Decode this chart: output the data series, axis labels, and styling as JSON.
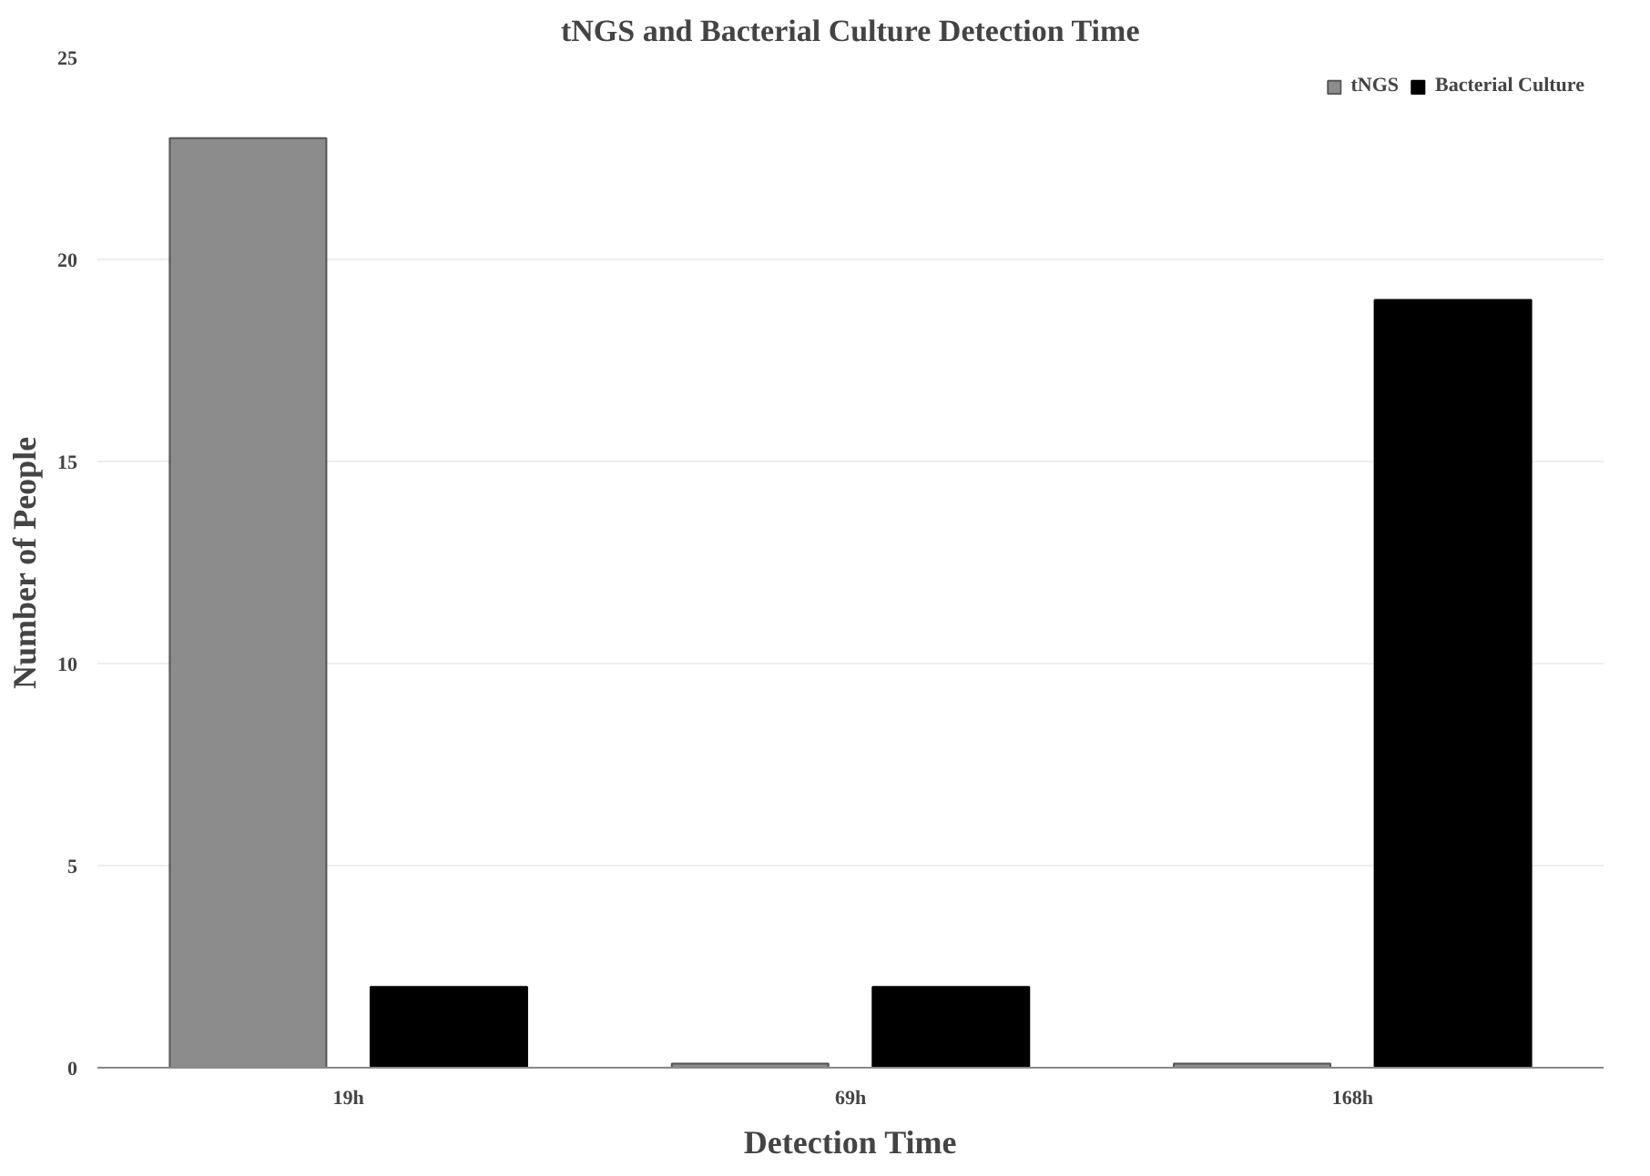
{
  "chart_data": {
    "type": "bar",
    "title": "tNGS and Bacterial Culture Detection Time",
    "xlabel": "Detection Time",
    "ylabel": "Number of People",
    "categories": [
      "19h",
      "69h",
      "168h"
    ],
    "series": [
      {
        "name": "tNGS",
        "color": "#8c8c8c",
        "values": [
          23,
          0.1,
          0.1
        ]
      },
      {
        "name": "Bacterial Culture",
        "color": "#000000",
        "values": [
          2,
          2,
          19
        ]
      }
    ],
    "ylim": [
      0,
      25
    ],
    "yticks": [
      0,
      5,
      10,
      15,
      20,
      25
    ],
    "grid": "y",
    "legend": "top right"
  }
}
